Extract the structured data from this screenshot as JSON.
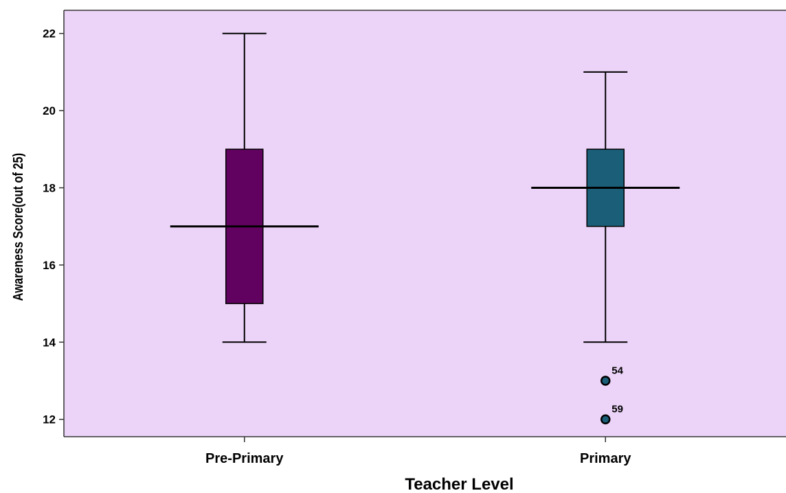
{
  "chart_data": {
    "type": "box",
    "title": "",
    "xlabel": "Teacher Level",
    "ylabel": "Awareness Score(out of 25)",
    "ylim": [
      11.55,
      22.6
    ],
    "yticks": [
      12,
      14,
      16,
      18,
      20,
      22
    ],
    "grid": false,
    "background": "#ecd4f8",
    "categories": [
      "Pre-Primary",
      "Primary"
    ],
    "boxes": [
      {
        "category": "Pre-Primary",
        "min": 14,
        "q1": 15,
        "median": 17,
        "q3": 19,
        "max": 22,
        "color": "#620260",
        "outliers": []
      },
      {
        "category": "Primary",
        "min": 14,
        "q1": 17,
        "median": 18,
        "q3": 19,
        "max": 21,
        "color": "#1b5e78",
        "outliers": [
          {
            "label": "54",
            "value": 13
          },
          {
            "label": "59",
            "value": 12
          }
        ]
      }
    ]
  }
}
